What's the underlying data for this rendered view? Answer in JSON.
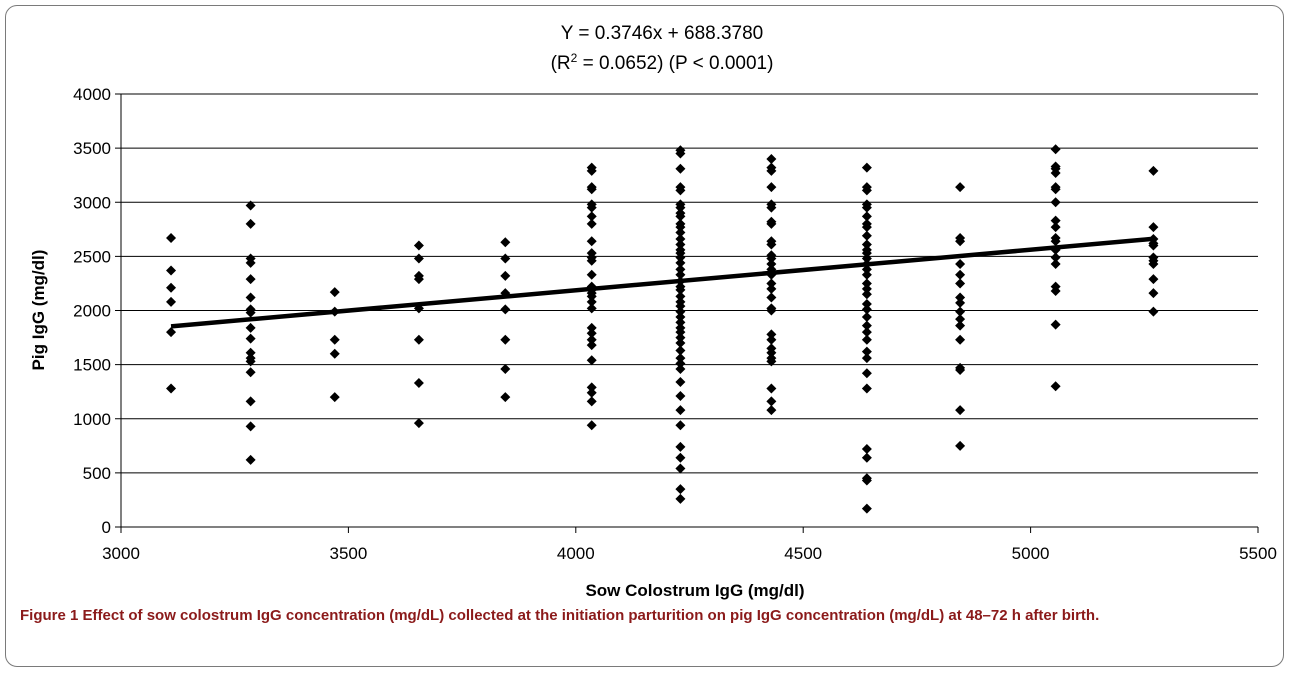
{
  "chart_data": {
    "type": "scatter",
    "title": "Y = 0.3746x + 688.3780",
    "subtitle_parts": {
      "open": "(R",
      "sup": "2",
      "rest": " = 0.0652) (P < 0.0001)"
    },
    "xlabel": "Sow Colostrum IgG (mg/dl)",
    "ylabel": "Pig IgG (mg/dl)",
    "xlim": [
      3000,
      5500
    ],
    "ylim": [
      0,
      4000
    ],
    "x_ticks": [
      "3000",
      "3500",
      "4000",
      "4500",
      "5000",
      "5500"
    ],
    "y_ticks": [
      "0",
      "500",
      "1000",
      "1500",
      "2000",
      "2500",
      "3000",
      "3500",
      "4000"
    ],
    "grid": "horizontal",
    "trendline": {
      "slope": 0.3746,
      "intercept": 688.378,
      "x_range": [
        3110,
        5270
      ]
    },
    "series": [
      {
        "x": 3110,
        "y": [
          2670,
          2370,
          2210,
          2080,
          1800,
          1280
        ]
      },
      {
        "x": 3285,
        "y": [
          2970,
          2800,
          2480,
          2440,
          2290,
          2120,
          2010,
          1980,
          1840,
          1740,
          1610,
          1560,
          1530,
          1430,
          1160,
          930,
          620
        ]
      },
      {
        "x": 3470,
        "y": [
          2170,
          1990,
          1730,
          1600,
          1200
        ]
      },
      {
        "x": 3655,
        "y": [
          2600,
          2480,
          2320,
          2290,
          2020,
          1730,
          1330,
          960
        ]
      },
      {
        "x": 3845,
        "y": [
          2630,
          2480,
          2320,
          2160,
          2010,
          1730,
          1460,
          1200
        ]
      },
      {
        "x": 4035,
        "y": [
          3320,
          3290,
          3140,
          3120,
          2980,
          2950,
          2870,
          2800,
          2640,
          2530,
          2490,
          2460,
          2330,
          2220,
          2190,
          2160,
          2130,
          2080,
          2020,
          1840,
          1790,
          1730,
          1680,
          1540,
          1290,
          1240,
          1160,
          940
        ]
      },
      {
        "x": 4230,
        "y": [
          3480,
          3450,
          3310,
          3140,
          3110,
          2980,
          2950,
          2900,
          2870,
          2800,
          2770,
          2720,
          2660,
          2610,
          2560,
          2530,
          2490,
          2440,
          2380,
          2330,
          2270,
          2220,
          2190,
          2130,
          2080,
          2040,
          1990,
          1940,
          1890,
          1840,
          1800,
          1750,
          1700,
          1630,
          1560,
          1510,
          1460,
          1340,
          1210,
          1080,
          940,
          740,
          640,
          540,
          350,
          260
        ]
      },
      {
        "x": 4430,
        "y": [
          3400,
          3320,
          3290,
          3140,
          2980,
          2950,
          2820,
          2800,
          2640,
          2610,
          2510,
          2480,
          2430,
          2380,
          2330,
          2250,
          2200,
          2120,
          2020,
          2000,
          1780,
          1730,
          1650,
          1610,
          1560,
          1530,
          1280,
          1160,
          1080
        ]
      },
      {
        "x": 4640,
        "y": [
          3320,
          3140,
          3110,
          2980,
          2950,
          2870,
          2800,
          2770,
          2690,
          2610,
          2560,
          2530,
          2480,
          2430,
          2380,
          2330,
          2250,
          2200,
          2150,
          2060,
          2010,
          1940,
          1860,
          1800,
          1730,
          1620,
          1560,
          1420,
          1280,
          720,
          640,
          450,
          430,
          170
        ]
      },
      {
        "x": 4845,
        "y": [
          3140,
          2670,
          2640,
          2430,
          2330,
          2250,
          2120,
          2070,
          1990,
          1920,
          1860,
          1730,
          1470,
          1450,
          1080,
          750
        ]
      },
      {
        "x": 5055,
        "y": [
          3490,
          3330,
          3310,
          3270,
          3140,
          3120,
          3000,
          2830,
          2770,
          2670,
          2640,
          2560,
          2490,
          2430,
          2220,
          2180,
          1870,
          1300
        ]
      },
      {
        "x": 5270,
        "y": [
          3290,
          2770,
          2660,
          2620,
          2600,
          2490,
          2460,
          2430,
          2290,
          2160,
          1990
        ]
      }
    ]
  },
  "caption": {
    "label": "Figure 1",
    "text": " Effect of sow colostrum IgG concentration (mg/dL) collected at the initiation parturition on pig IgG concentration (mg/dL) at 48–72 h after birth."
  }
}
